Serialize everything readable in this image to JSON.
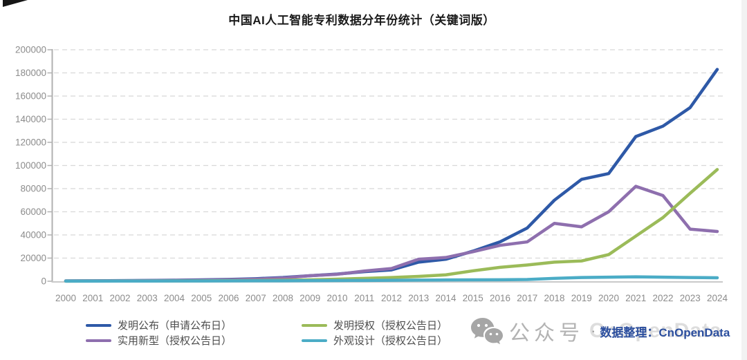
{
  "chart_data": {
    "type": "line",
    "title": "中国AI人工智能专利数据分年份统计（关键词版）",
    "xlabel": "",
    "ylabel": "",
    "x": [
      "2000",
      "2001",
      "2002",
      "2003",
      "2004",
      "2005",
      "2006",
      "2007",
      "2008",
      "2009",
      "2010",
      "2011",
      "2012",
      "2013",
      "2014",
      "2015",
      "2016",
      "2017",
      "2018",
      "2019",
      "2020",
      "2021",
      "2022",
      "2023",
      "2024"
    ],
    "ylim": [
      0,
      200000
    ],
    "yticks": [
      0,
      20000,
      40000,
      60000,
      80000,
      100000,
      120000,
      140000,
      160000,
      180000,
      200000
    ],
    "grid": "horizontal-dashed",
    "legend_position": "bottom-left",
    "series": [
      {
        "name": "发明公布（申请公布日）",
        "color": "#2e59a7",
        "values": [
          300,
          400,
          500,
          700,
          900,
          1200,
          1600,
          2200,
          3200,
          4800,
          6200,
          8300,
          9800,
          16500,
          19000,
          26000,
          34000,
          46000,
          70000,
          88000,
          93000,
          125000,
          134000,
          150000,
          183000
        ]
      },
      {
        "name": "发明授权（授权公告日）",
        "color": "#9bbb59",
        "values": [
          100,
          150,
          200,
          250,
          300,
          400,
          500,
          600,
          800,
          1200,
          1800,
          2500,
          3200,
          4200,
          5500,
          9000,
          12000,
          14000,
          16500,
          17500,
          23000,
          39000,
          55000,
          76000,
          96500
        ]
      },
      {
        "name": "实用新型（授权公告日）",
        "color": "#8e6fae",
        "values": [
          200,
          300,
          400,
          500,
          700,
          900,
          1300,
          1800,
          2800,
          4800,
          6000,
          8800,
          11000,
          19000,
          20500,
          25500,
          31000,
          34000,
          50000,
          47000,
          60000,
          82000,
          74000,
          45000,
          43000
        ]
      },
      {
        "name": "外观设计（授权公告日）",
        "color": "#4bacc6",
        "values": [
          100,
          100,
          150,
          150,
          200,
          250,
          300,
          350,
          400,
          500,
          600,
          700,
          800,
          1000,
          1100,
          1200,
          1300,
          1500,
          2500,
          3200,
          3500,
          3800,
          3500,
          3200,
          3000
        ]
      }
    ],
    "colors": {
      "axis": "#b0b0b0",
      "grid": "#d8d8d8",
      "tick_labels": "#8c8c8c",
      "title": "#1a1a1a",
      "legend_text": "#4d4d4d"
    }
  },
  "watermark": {
    "wechat_icon": "wechat-icon",
    "account_label": "公众号",
    "separator": "·",
    "credit": "数据整理：CnOpenData",
    "credit_color": "#2b4e9e",
    "ghost_text": "CnOpenData"
  }
}
